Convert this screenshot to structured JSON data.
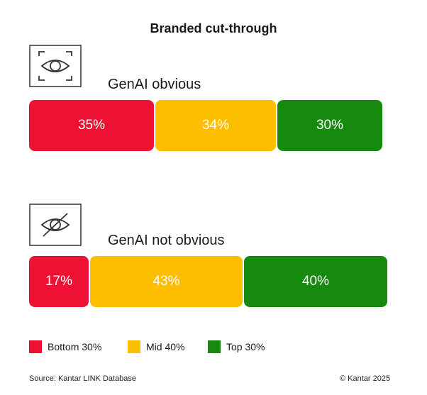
{
  "chart_data": {
    "type": "bar",
    "stacked": true,
    "orientation": "horizontal",
    "title": "Branded cut-through",
    "categories": [
      "GenAI obvious",
      "GenAI not obvious"
    ],
    "series": [
      {
        "name": "Bottom 30%",
        "color": "#EE1133",
        "values": [
          35,
          17
        ],
        "labels": [
          "35%",
          "17%"
        ]
      },
      {
        "name": "Mid 40%",
        "color": "#FDBE00",
        "values": [
          34,
          43
        ],
        "labels": [
          "34%",
          "43%"
        ]
      },
      {
        "name": "Top 30%",
        "color": "#158A0F",
        "values": [
          30,
          40
        ],
        "labels": [
          "30%",
          "40%"
        ]
      }
    ],
    "legend_position": "bottom-left"
  },
  "groups": [
    {
      "label": "GenAI obvious",
      "icon": "eye-icon"
    },
    {
      "label": "GenAI not obvious",
      "icon": "eye-slash-icon"
    }
  ],
  "footer": {
    "source": "Source: Kantar LINK Database",
    "copyright": "© Kantar 2025"
  }
}
